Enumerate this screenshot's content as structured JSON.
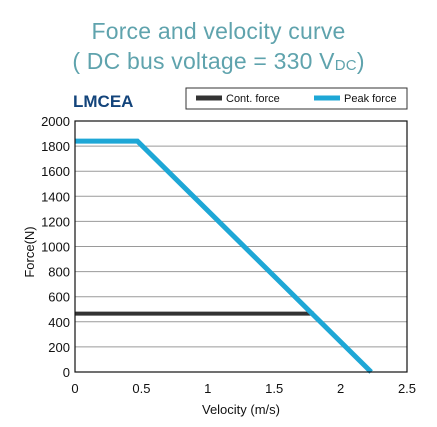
{
  "title_line1": "Force and velocity curve",
  "title_line2_prefix": "( DC bus voltage = 330 V",
  "title_line2_sub": "DC",
  "title_line2_suffix": ")",
  "model": "LMCEA",
  "colors": {
    "title": "#5fa3ad",
    "model": "#13447b",
    "cont": "#333333",
    "peak": "#1ea7d6"
  },
  "chart_data": {
    "type": "line",
    "xlabel": "Velocity (m/s)",
    "ylabel": "Force(N)",
    "xlim": [
      0,
      2.5
    ],
    "ylim": [
      0,
      2000
    ],
    "x_ticks": [
      0,
      0.5,
      1,
      1.5,
      2,
      2.5
    ],
    "x_tick_labels": [
      "0",
      "0.5",
      "1",
      "1.5",
      "2",
      "2.5"
    ],
    "y_ticks": [
      0,
      200,
      400,
      600,
      800,
      1000,
      1200,
      1400,
      1600,
      1800,
      2000
    ],
    "y_tick_labels": [
      "0",
      "200",
      "400",
      "600",
      "800",
      "1000",
      "1200",
      "1400",
      "1600",
      "1800",
      "2000"
    ],
    "grid": "horizontal",
    "legend_position": "top-right",
    "series": [
      {
        "name": "Cont. force",
        "color": "#333333",
        "x": [
          0,
          1.8
        ],
        "y": [
          465,
          465
        ]
      },
      {
        "name": "Peak force",
        "color": "#1ea7d6",
        "x": [
          0,
          0.47,
          2.23
        ],
        "y": [
          1840,
          1840,
          0
        ]
      }
    ]
  }
}
